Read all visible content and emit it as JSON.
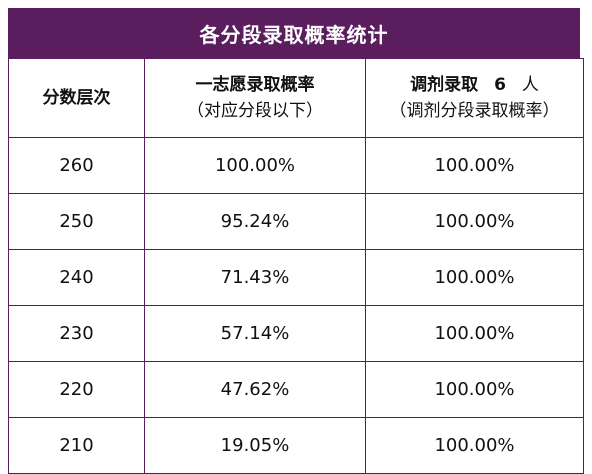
{
  "title": "各分段录取概率统计",
  "headers": {
    "col1": "分数层次",
    "col2_line1": "一志愿录取概率",
    "col2_line2": "（对应分段以下）",
    "col3_prefix": "调剂录取",
    "col3_count": "6",
    "col3_suffix": "人",
    "col3_line2": "（调剂分段录取概率）"
  },
  "rows": [
    {
      "score": "260",
      "first_choice": "100.00%",
      "adjustment": "100.00%"
    },
    {
      "score": "250",
      "first_choice": "95.24%",
      "adjustment": "100.00%"
    },
    {
      "score": "240",
      "first_choice": "71.43%",
      "adjustment": "100.00%"
    },
    {
      "score": "230",
      "first_choice": "57.14%",
      "adjustment": "100.00%"
    },
    {
      "score": "220",
      "first_choice": "47.62%",
      "adjustment": "100.00%"
    },
    {
      "score": "210",
      "first_choice": "19.05%",
      "adjustment": "100.00%"
    }
  ]
}
